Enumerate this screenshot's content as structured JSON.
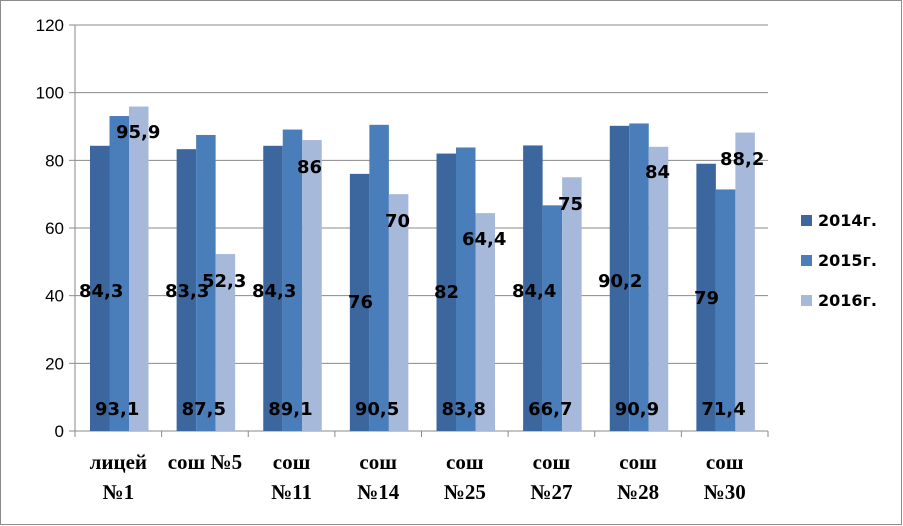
{
  "chart_data": {
    "type": "bar",
    "categories": [
      [
        "лицей",
        "№1"
      ],
      [
        "сош №5"
      ],
      [
        "сош",
        "№11"
      ],
      [
        "сош",
        "№14"
      ],
      [
        "сош",
        "№25"
      ],
      [
        "сош",
        "№27"
      ],
      [
        "сош",
        "№28"
      ],
      [
        "сош",
        "№30"
      ]
    ],
    "series": [
      {
        "name": "2014г.",
        "color": "#3B679E",
        "values": [
          84.3,
          83.3,
          84.3,
          76,
          82,
          84.4,
          90.2,
          79
        ],
        "labels": [
          "84,3",
          "83,3",
          "84,3",
          "76",
          "82",
          "84,4",
          "90,2",
          "79"
        ]
      },
      {
        "name": "2015г.",
        "color": "#4A7EBB",
        "values": [
          93.1,
          87.5,
          89.1,
          90.5,
          83.8,
          66.7,
          90.9,
          71.4
        ],
        "labels": [
          "93,1",
          "87,5",
          "89,1",
          "90,5",
          "83,8",
          "66,7",
          "90,9",
          "71,4"
        ]
      },
      {
        "name": "2016г.",
        "color": "#A7B9DA",
        "values": [
          95.9,
          52.3,
          86,
          70,
          64.4,
          75,
          84,
          88.2
        ],
        "labels": [
          "95,9",
          "52,3",
          "86",
          "70",
          "64,4",
          "75",
          "84",
          "88,2"
        ]
      }
    ],
    "yticks": [
      "0",
      "20",
      "40",
      "60",
      "80",
      "100",
      "120"
    ],
    "ylim": [
      0,
      120
    ],
    "grid": true,
    "legend": "right",
    "title": "",
    "xlabel": "",
    "ylabel": ""
  }
}
